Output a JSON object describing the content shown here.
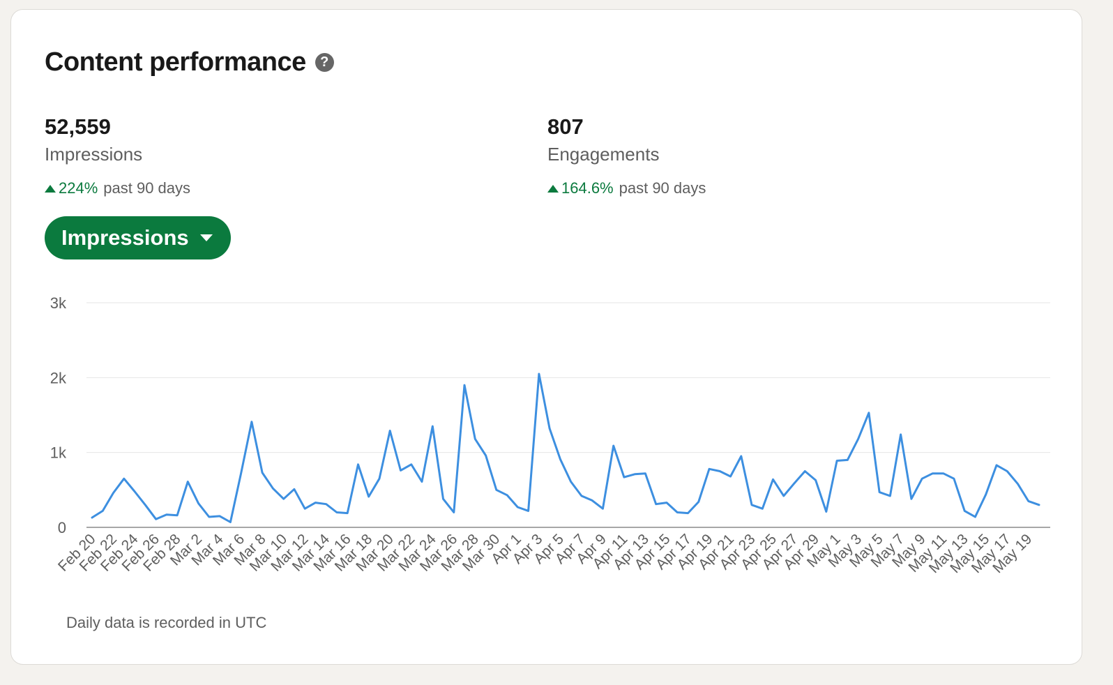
{
  "card": {
    "title": "Content performance",
    "help_icon": "question-circle-icon"
  },
  "metrics": [
    {
      "value": "52,559",
      "label": "Impressions",
      "change": "224%",
      "period": "past 90 days"
    },
    {
      "value": "807",
      "label": "Engagements",
      "change": "164.6%",
      "period": "past 90 days"
    }
  ],
  "dropdown": {
    "label": "Impressions"
  },
  "footnote": "Daily data is recorded in UTC",
  "colors": {
    "accent": "#0b7a3e",
    "line": "#3d8fe0",
    "grid": "#e6e6e6"
  },
  "chart_data": {
    "type": "line",
    "y_ticks": [
      {
        "value": 0,
        "label": "0"
      },
      {
        "value": 1000,
        "label": "1k"
      },
      {
        "value": 2000,
        "label": "2k"
      },
      {
        "value": 3000,
        "label": "3k"
      }
    ],
    "ylim": [
      0,
      3000
    ],
    "grid": true,
    "x_tick_labels": [
      "Feb 20",
      "Feb 22",
      "Feb 24",
      "Feb 26",
      "Feb 28",
      "Mar 2",
      "Mar 4",
      "Mar 6",
      "Mar 8",
      "Mar 10",
      "Mar 12",
      "Mar 14",
      "Mar 16",
      "Mar 18",
      "Mar 20",
      "Mar 22",
      "Mar 24",
      "Mar 26",
      "Mar 28",
      "Mar 30",
      "Apr 1",
      "Apr 3",
      "Apr 5",
      "Apr 7",
      "Apr 9",
      "Apr 11",
      "Apr 13",
      "Apr 15",
      "Apr 17",
      "Apr 19",
      "Apr 21",
      "Apr 23",
      "Apr 25",
      "Apr 27",
      "Apr 29",
      "May 1",
      "May 3",
      "May 5",
      "May 7",
      "May 9",
      "May 11",
      "May 13",
      "May 15",
      "May 17",
      "May 19"
    ],
    "series": [
      {
        "values": [
          130,
          220,
          460,
          650,
          480,
          300,
          110,
          170,
          160,
          610,
          320,
          140,
          150,
          70,
          720,
          1410,
          730,
          520,
          380,
          510,
          250,
          330,
          310,
          200,
          190,
          840,
          410,
          650,
          1290,
          760,
          840,
          610,
          1350,
          380,
          200,
          1900,
          1180,
          960,
          500,
          430,
          270,
          220,
          2050,
          1320,
          910,
          610,
          420,
          360,
          250,
          1090,
          670,
          710,
          720,
          310,
          330,
          200,
          190,
          340,
          780,
          750,
          680,
          950,
          300,
          250,
          640,
          420,
          590,
          750,
          630,
          210,
          890,
          900,
          1180,
          1530,
          470,
          420,
          1240,
          380,
          650,
          720,
          720,
          650,
          220,
          140,
          440,
          830,
          750,
          580,
          350,
          300
        ]
      }
    ]
  }
}
